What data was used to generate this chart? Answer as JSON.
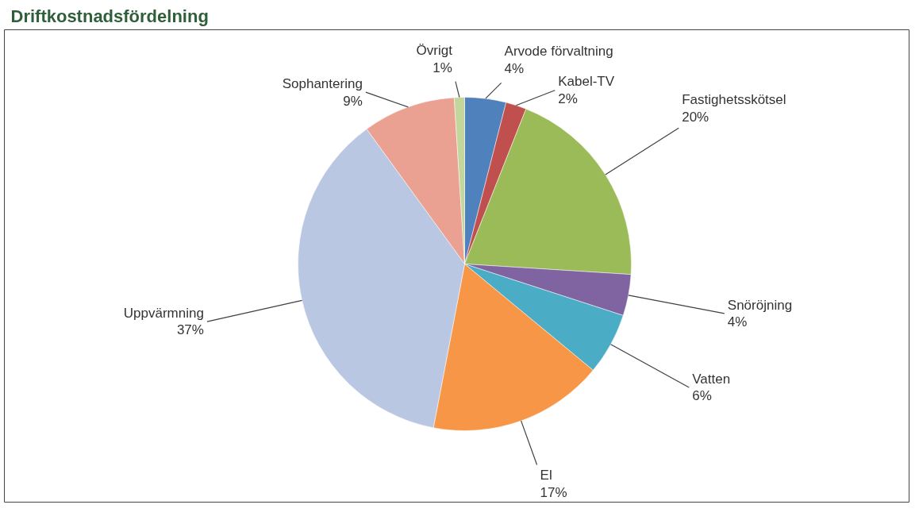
{
  "chart_data": {
    "type": "pie",
    "title": "Driftkostnadsfördelning",
    "categories": [
      "Arvode förvaltning",
      "Kabel-TV",
      "Fastighetsskötsel",
      "Snöröjning",
      "Vatten",
      "El",
      "Uppvärmning",
      "Sophantering",
      "Övrigt"
    ],
    "values": [
      4,
      2,
      20,
      4,
      6,
      17,
      37,
      9,
      1
    ],
    "value_labels": [
      "4%",
      "2%",
      "20%",
      "4%",
      "6%",
      "17%",
      "37%",
      "9%",
      "1%"
    ],
    "colors": [
      "#4f81bd",
      "#c0504d",
      "#9bbb59",
      "#8064a2",
      "#4bacc6",
      "#f79646",
      "#b9c7e2",
      "#eba191",
      "#c3d69b"
    ]
  }
}
